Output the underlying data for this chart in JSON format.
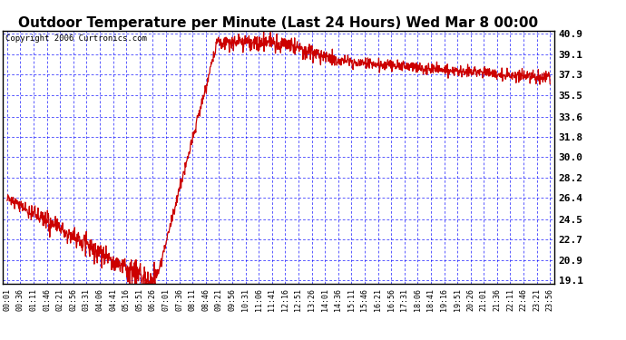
{
  "title": "Outdoor Temperature per Minute (Last 24 Hours) Wed Mar 8 00:00",
  "copyright": "Copyright 2006 Curtronics.com",
  "bg_color": "#FFFFFF",
  "plot_bg_color": "#FFFFFF",
  "grid_color": "#0000FF",
  "line_color": "#CC0000",
  "text_color": "#000000",
  "yticks": [
    19.1,
    20.9,
    22.7,
    24.5,
    26.4,
    28.2,
    30.0,
    31.8,
    33.6,
    35.5,
    37.3,
    39.1,
    40.9
  ],
  "ymin": 19.1,
  "ymax": 40.9,
  "xtick_labels": [
    "00:01",
    "00:36",
    "01:11",
    "01:46",
    "02:21",
    "02:56",
    "03:31",
    "04:06",
    "04:41",
    "05:16",
    "05:51",
    "06:26",
    "07:01",
    "07:36",
    "08:11",
    "08:46",
    "09:21",
    "09:56",
    "10:31",
    "11:06",
    "11:41",
    "12:16",
    "12:51",
    "13:26",
    "14:01",
    "14:36",
    "15:11",
    "15:46",
    "16:21",
    "16:56",
    "17:31",
    "18:06",
    "18:41",
    "19:16",
    "19:51",
    "20:26",
    "21:01",
    "21:36",
    "22:11",
    "22:46",
    "23:21",
    "23:56"
  ],
  "title_fontsize": 11,
  "copyright_fontsize": 6.5,
  "ytick_fontsize": 8,
  "xtick_fontsize": 6
}
